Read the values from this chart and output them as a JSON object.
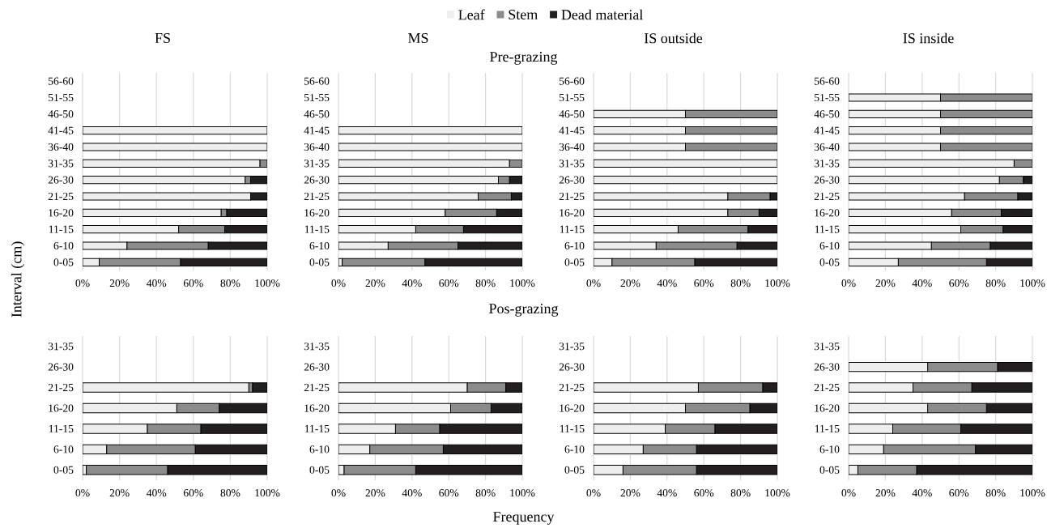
{
  "chart_data": [
    {
      "type": "bar",
      "title": "FS",
      "ylabel": "Interval (cm)",
      "legend": "top",
      "stacked": true,
      "orientation": "horizontal",
      "grid": "x",
      "xlim": [
        0,
        100
      ],
      "xticks": [
        {
          "value": 0,
          "label": "0%"
        },
        {
          "value": 20,
          "label": "20%"
        },
        {
          "value": 40,
          "label": "40%"
        },
        {
          "value": 60,
          "label": "60%"
        },
        {
          "value": 80,
          "label": "80%"
        },
        {
          "value": 100,
          "label": "100%"
        }
      ],
      "categories": [
        "56-60",
        "51-55",
        "46-50",
        "41-45",
        "36-40",
        "31-35",
        "26-30",
        "21-25",
        "16-20",
        "11-15",
        "6-10",
        "0-05"
      ],
      "series": [
        {
          "name": "Leaf",
          "color": "#eeeeee",
          "values": [
            null,
            null,
            null,
            100,
            100,
            96,
            88,
            91,
            75,
            52,
            24,
            9
          ]
        },
        {
          "name": "Stem",
          "color": "#8c8c8c",
          "values": [
            null,
            null,
            null,
            0,
            0,
            4,
            3,
            0,
            3,
            25,
            44,
            44
          ]
        },
        {
          "name": "Dead material",
          "color": "#231f20",
          "values": [
            null,
            null,
            null,
            0,
            0,
            0,
            9,
            9,
            22,
            23,
            32,
            47
          ]
        }
      ]
    },
    {
      "type": "bar",
      "title": "MS",
      "subtitle": "Pre-grazing",
      "stacked": true,
      "orientation": "horizontal",
      "grid": "x",
      "xlim": [
        0,
        100
      ],
      "xticks": [
        {
          "value": 0,
          "label": "0%"
        },
        {
          "value": 20,
          "label": "20%"
        },
        {
          "value": 40,
          "label": "40%"
        },
        {
          "value": 60,
          "label": "60%"
        },
        {
          "value": 80,
          "label": "80%"
        },
        {
          "value": 100,
          "label": "100%"
        }
      ],
      "categories": [
        "56-60",
        "51-55",
        "46-50",
        "41-45",
        "36-40",
        "31-35",
        "26-30",
        "21-25",
        "16-20",
        "11-15",
        "6-10",
        "0-05"
      ],
      "series": [
        {
          "color": "#eeeeee",
          "values": [
            null,
            null,
            null,
            100,
            100,
            93,
            87,
            76,
            58,
            42,
            27,
            2
          ]
        },
        {
          "color": "#8c8c8c",
          "values": [
            null,
            null,
            null,
            0,
            0,
            7,
            6,
            18,
            28,
            26,
            38,
            45
          ]
        },
        {
          "color": "#231f20",
          "values": [
            null,
            null,
            null,
            0,
            0,
            0,
            7,
            6,
            14,
            32,
            35,
            53
          ]
        }
      ]
    },
    {
      "type": "bar",
      "title": "IS outside",
      "stacked": true,
      "orientation": "horizontal",
      "grid": "x",
      "xlim": [
        0,
        100
      ],
      "xticks": [
        {
          "value": 0,
          "label": "0%"
        },
        {
          "value": 20,
          "label": "20%"
        },
        {
          "value": 40,
          "label": "40%"
        },
        {
          "value": 60,
          "label": "60%"
        },
        {
          "value": 80,
          "label": "80%"
        },
        {
          "value": 100,
          "label": "100%"
        }
      ],
      "categories": [
        "56-60",
        "51-55",
        "46-50",
        "41-45",
        "36-40",
        "31-35",
        "26-30",
        "21-25",
        "16-20",
        "11-15",
        "6-10",
        "0-05"
      ],
      "series": [
        {
          "color": "#eeeeee",
          "values": [
            null,
            null,
            50,
            50,
            50,
            100,
            100,
            73,
            73,
            46,
            34,
            10
          ]
        },
        {
          "color": "#8c8c8c",
          "values": [
            null,
            null,
            50,
            50,
            50,
            0,
            0,
            23,
            17,
            38,
            44,
            45
          ]
        },
        {
          "color": "#231f20",
          "values": [
            null,
            null,
            0,
            0,
            0,
            0,
            0,
            4,
            10,
            16,
            22,
            45
          ]
        }
      ]
    },
    {
      "type": "bar",
      "title": "IS inside",
      "stacked": true,
      "orientation": "horizontal",
      "grid": "x",
      "xlim": [
        0,
        100
      ],
      "xticks": [
        {
          "value": 0,
          "label": "0%"
        },
        {
          "value": 20,
          "label": "20%"
        },
        {
          "value": 40,
          "label": "40%"
        },
        {
          "value": 60,
          "label": "60%"
        },
        {
          "value": 80,
          "label": "80%"
        },
        {
          "value": 100,
          "label": "100%"
        }
      ],
      "categories": [
        "56-60",
        "51-55",
        "46-50",
        "41-45",
        "36-40",
        "31-35",
        "26-30",
        "21-25",
        "16-20",
        "11-15",
        "6-10",
        "0-05"
      ],
      "series": [
        {
          "color": "#eeeeee",
          "values": [
            null,
            50,
            50,
            50,
            50,
            90,
            82,
            63,
            56,
            61,
            45,
            27
          ]
        },
        {
          "color": "#8c8c8c",
          "values": [
            null,
            50,
            50,
            50,
            50,
            10,
            13,
            29,
            27,
            23,
            32,
            48
          ]
        },
        {
          "color": "#231f20",
          "values": [
            null,
            0,
            0,
            0,
            0,
            0,
            5,
            8,
            17,
            16,
            23,
            25
          ]
        }
      ]
    },
    {
      "type": "bar",
      "stacked": true,
      "orientation": "horizontal",
      "grid": "x",
      "xlim": [
        0,
        100
      ],
      "xticks": [
        {
          "value": 0,
          "label": "0%"
        },
        {
          "value": 20,
          "label": "20%"
        },
        {
          "value": 40,
          "label": "40%"
        },
        {
          "value": 60,
          "label": "60%"
        },
        {
          "value": 80,
          "label": "80%"
        },
        {
          "value": 100,
          "label": "100%"
        }
      ],
      "categories": [
        "31-35",
        "26-30",
        "21-25",
        "16-20",
        "11-15",
        "6-10",
        "0-05"
      ],
      "series": [
        {
          "color": "#eeeeee",
          "values": [
            null,
            null,
            90,
            51,
            35,
            13,
            2
          ]
        },
        {
          "color": "#8c8c8c",
          "values": [
            null,
            null,
            2,
            23,
            29,
            48,
            44
          ]
        },
        {
          "color": "#231f20",
          "values": [
            null,
            null,
            8,
            26,
            36,
            39,
            54
          ]
        }
      ]
    },
    {
      "type": "bar",
      "stacked": true,
      "orientation": "horizontal",
      "grid": "x",
      "xlim": [
        0,
        100
      ],
      "xticks": [
        {
          "value": 0,
          "label": "0%"
        },
        {
          "value": 20,
          "label": "20%"
        },
        {
          "value": 40,
          "label": "40%"
        },
        {
          "value": 60,
          "label": "60%"
        },
        {
          "value": 80,
          "label": "80%"
        },
        {
          "value": 100,
          "label": "100%"
        }
      ],
      "categories": [
        "31-35",
        "26-30",
        "21-25",
        "16-20",
        "11-15",
        "6-10",
        "0-05"
      ],
      "subtitle": "Pos-grazing",
      "xlabel": "Frequency",
      "series": [
        {
          "color": "#eeeeee",
          "values": [
            null,
            null,
            70,
            61,
            31,
            17,
            3
          ]
        },
        {
          "color": "#8c8c8c",
          "values": [
            null,
            null,
            21,
            22,
            24,
            40,
            39
          ]
        },
        {
          "color": "#231f20",
          "values": [
            null,
            null,
            9,
            17,
            45,
            43,
            58
          ]
        }
      ]
    },
    {
      "type": "bar",
      "stacked": true,
      "orientation": "horizontal",
      "grid": "x",
      "xlim": [
        0,
        100
      ],
      "xticks": [
        {
          "value": 0,
          "label": "0%"
        },
        {
          "value": 20,
          "label": "20%"
        },
        {
          "value": 40,
          "label": "40%"
        },
        {
          "value": 60,
          "label": "60%"
        },
        {
          "value": 80,
          "label": "80%"
        },
        {
          "value": 100,
          "label": "100%"
        }
      ],
      "categories": [
        "31-35",
        "26-30",
        "21-25",
        "16-20",
        "11-15",
        "6-10",
        "0-05"
      ],
      "series": [
        {
          "color": "#eeeeee",
          "values": [
            null,
            null,
            57,
            50,
            39,
            27,
            16
          ]
        },
        {
          "color": "#8c8c8c",
          "values": [
            null,
            null,
            35,
            35,
            27,
            29,
            40
          ]
        },
        {
          "color": "#231f20",
          "values": [
            null,
            null,
            8,
            15,
            34,
            44,
            44
          ]
        }
      ]
    },
    {
      "type": "bar",
      "stacked": true,
      "orientation": "horizontal",
      "grid": "x",
      "xlim": [
        0,
        100
      ],
      "xticks": [
        {
          "value": 0,
          "label": "0%"
        },
        {
          "value": 20,
          "label": "20%"
        },
        {
          "value": 40,
          "label": "40%"
        },
        {
          "value": 60,
          "label": "60%"
        },
        {
          "value": 80,
          "label": "80%"
        },
        {
          "value": 100,
          "label": "100%"
        }
      ],
      "categories": [
        "31-35",
        "26-30",
        "21-25",
        "16-20",
        "11-15",
        "6-10",
        "0-05"
      ],
      "series": [
        {
          "color": "#eeeeee",
          "values": [
            null,
            43,
            35,
            43,
            24,
            19,
            5
          ]
        },
        {
          "color": "#8c8c8c",
          "values": [
            null,
            38,
            32,
            32,
            37,
            50,
            32
          ]
        },
        {
          "color": "#231f20",
          "values": [
            null,
            19,
            33,
            25,
            39,
            31,
            63
          ]
        }
      ]
    }
  ]
}
